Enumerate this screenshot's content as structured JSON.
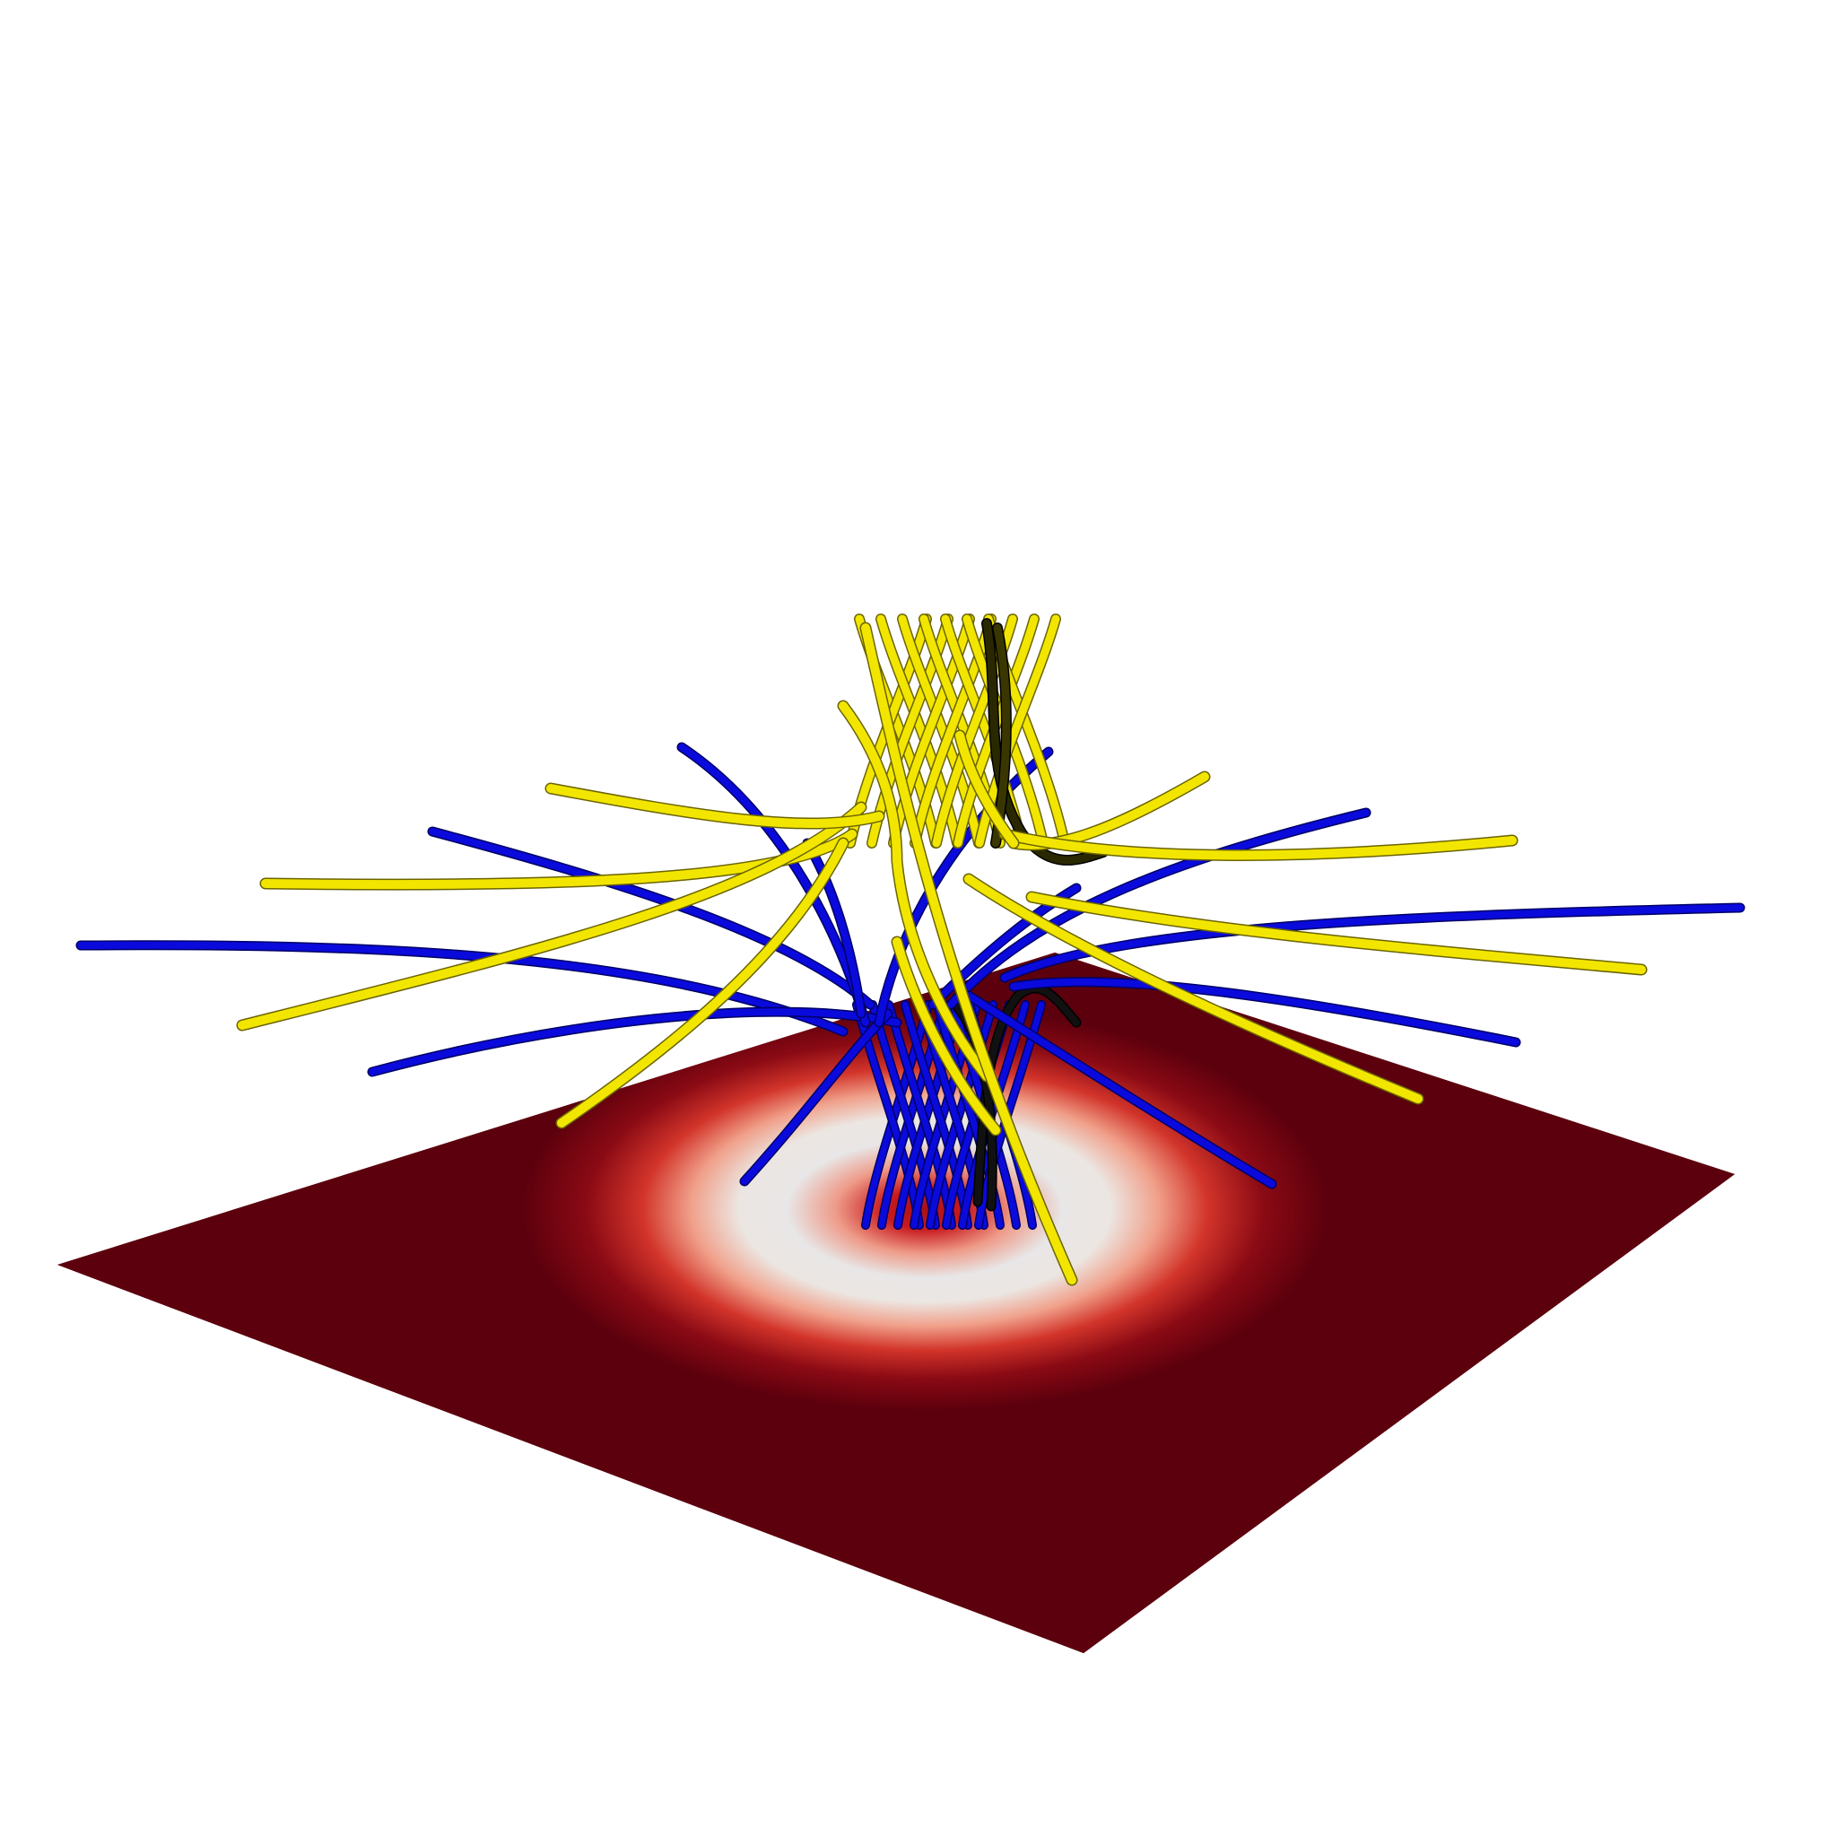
{
  "scene": {
    "background": "#ffffff",
    "plane": {
      "base_color": "#5c000d",
      "ring_colors": [
        "#5c000d",
        "#8a0a14",
        "#d2342a",
        "#f0a08a",
        "#ece6e2",
        "#e8e6e6",
        "#ee9a88",
        "#c81a1e",
        "#a8101a"
      ]
    },
    "field_lines": {
      "yellow": {
        "color": "#f2e600",
        "edge": "#6b6400",
        "count": 16
      },
      "blue": {
        "color": "#0a0adc",
        "edge": "#000066",
        "count": 16
      },
      "shadow_color": "#111111"
    }
  }
}
